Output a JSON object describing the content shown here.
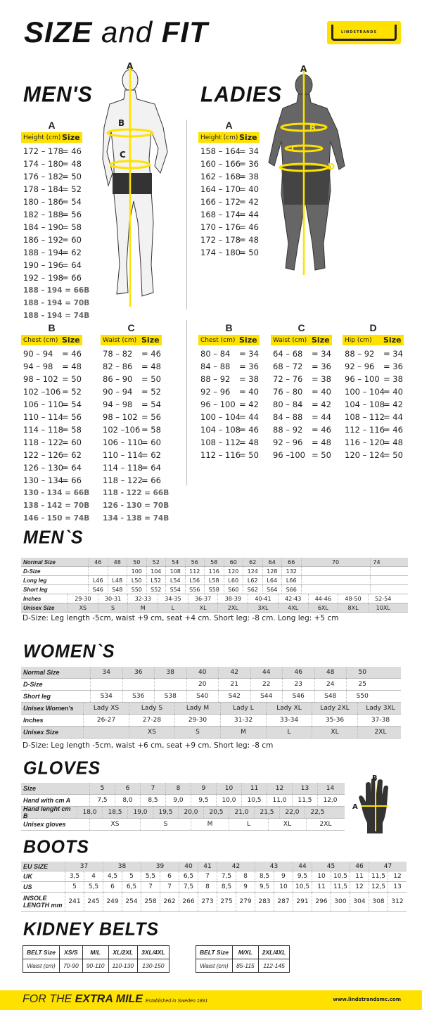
{
  "title": {
    "strong1": "SIZE",
    "mid": " and ",
    "strong2": "FIT"
  },
  "logo": {
    "text": "LINDSTRANDS"
  },
  "colors": {
    "accent": "#ffe100",
    "row_gray": "#dcdcdc"
  },
  "men": {
    "heading": "MEN'S",
    "figure_labels": [
      "A",
      "B",
      "C"
    ],
    "a": {
      "letter": "A",
      "h1": "Height (cm)",
      "h2": "Size",
      "rows": [
        [
          "172 – 178",
          "= 46"
        ],
        [
          "174 – 180",
          "= 48"
        ],
        [
          "176 – 182",
          "= 50"
        ],
        [
          "178 – 184",
          "= 52"
        ],
        [
          "180 – 186",
          "= 54"
        ],
        [
          "182 – 188",
          "= 56"
        ],
        [
          "184 – 190",
          "= 58"
        ],
        [
          "186 – 192",
          "= 60"
        ],
        [
          "188 – 194",
          "= 62"
        ],
        [
          "190 – 196",
          "= 64"
        ],
        [
          "192 – 198",
          "= 66"
        ]
      ],
      "extra": [
        "188 - 194 = 66B",
        "188 - 194 = 70B",
        "188 - 194 = 74B"
      ]
    },
    "b": {
      "letter": "B",
      "h1": "Chest (cm)",
      "h2": "Size",
      "rows": [
        [
          "90 –  94",
          "= 46"
        ],
        [
          "94 –  98",
          "= 48"
        ],
        [
          "98 – 102",
          "= 50"
        ],
        [
          "102 –106",
          "= 52"
        ],
        [
          "106 – 110",
          "= 54"
        ],
        [
          "110 – 114",
          "= 56"
        ],
        [
          "114 – 118",
          "= 58"
        ],
        [
          "118 – 122",
          "= 60"
        ],
        [
          "122 – 126",
          "= 62"
        ],
        [
          "126 – 130",
          "= 64"
        ],
        [
          "130 – 134",
          "= 66"
        ]
      ],
      "extra": [
        "130 - 134 = 66B",
        "138 - 142 = 70B",
        "146 - 150 = 74B"
      ]
    },
    "c": {
      "letter": "C",
      "h1": "Waist (cm)",
      "h2": "Size",
      "rows": [
        [
          "78 –  82",
          "= 46"
        ],
        [
          "82 –  86",
          "= 48"
        ],
        [
          "86 –  90",
          "= 50"
        ],
        [
          "90 –  94",
          "= 52"
        ],
        [
          "94 –  98",
          "= 54"
        ],
        [
          "98 – 102",
          "= 56"
        ],
        [
          "102 –106",
          "= 58"
        ],
        [
          "106 – 110",
          "= 60"
        ],
        [
          "110 – 114",
          "= 62"
        ],
        [
          "114 – 118",
          "= 64"
        ],
        [
          "118 – 122",
          "= 66"
        ]
      ],
      "extra": [
        "118 - 122 = 66B",
        "126 - 130 = 70B",
        "134 - 138 = 74B"
      ]
    }
  },
  "ladies": {
    "heading": "LADIES",
    "figure_labels": [
      "A",
      "B",
      "C",
      "D"
    ],
    "a": {
      "letter": "A",
      "h1": "Height (cm)",
      "h2": "Size",
      "rows": [
        [
          "158 – 164",
          "= 34"
        ],
        [
          "160 – 166",
          "= 36"
        ],
        [
          "162 – 168",
          "= 38"
        ],
        [
          "164 – 170",
          "= 40"
        ],
        [
          "166 – 172",
          "= 42"
        ],
        [
          "168 – 174",
          "= 44"
        ],
        [
          "170 – 176",
          "= 46"
        ],
        [
          "172 – 178",
          "= 48"
        ],
        [
          "174 – 180",
          "= 50"
        ]
      ]
    },
    "b": {
      "letter": "B",
      "h1": "Chest (cm)",
      "h2": "Size",
      "rows": [
        [
          "80 –   84",
          "= 34"
        ],
        [
          "84 –   88",
          "= 36"
        ],
        [
          "88 –   92",
          "= 38"
        ],
        [
          "92 –   96",
          "= 40"
        ],
        [
          "96 –  100",
          "= 42"
        ],
        [
          "100 – 104",
          "= 44"
        ],
        [
          "104 – 108",
          "= 46"
        ],
        [
          "108 –  112",
          "= 48"
        ],
        [
          "112 –   116",
          "= 50"
        ]
      ]
    },
    "c": {
      "letter": "C",
      "h1": "Waist (cm)",
      "h2": "Size",
      "rows": [
        [
          "64 –  68",
          "= 34"
        ],
        [
          "68 –  72",
          "= 36"
        ],
        [
          "72 –  76",
          "= 38"
        ],
        [
          "76 –  80",
          "= 40"
        ],
        [
          "80 –  84",
          "= 42"
        ],
        [
          "84 –  88",
          "= 44"
        ],
        [
          "88 –  92",
          "= 46"
        ],
        [
          "92 –  96",
          "= 48"
        ],
        [
          "96 –100",
          "= 50"
        ]
      ]
    },
    "d": {
      "letter": "D",
      "h1": "Hip (cm)",
      "h2": "Size",
      "rows": [
        [
          "88 –   92",
          "= 34"
        ],
        [
          "92 –   96",
          "= 36"
        ],
        [
          "96 – 100",
          "= 38"
        ],
        [
          "100 – 104",
          "= 40"
        ],
        [
          "104 – 108",
          "= 42"
        ],
        [
          "108 – 112",
          "= 44"
        ],
        [
          "112 –  116",
          "= 46"
        ],
        [
          "116 – 120",
          "= 48"
        ],
        [
          "120 – 124",
          "= 50"
        ]
      ]
    }
  },
  "mens_table": {
    "heading": "MEN`S",
    "note": "D-Size: Leg length -5cm, waist +9 cm, seat +4 cm. Short leg: -8 cm. Long leg: +5 cm",
    "rows": [
      {
        "label": "Normal Size",
        "cells": [
          "46",
          "48",
          "50",
          "52",
          "54",
          "56",
          "58",
          "60",
          "62",
          "64",
          "66",
          "70",
          "74"
        ]
      },
      {
        "label": "D-Size",
        "cells": [
          "",
          "",
          "100",
          "104",
          "108",
          "112",
          "116",
          "120",
          "124",
          "128",
          "132",
          "",
          ""
        ]
      },
      {
        "label": "Long leg",
        "cells": [
          "L46",
          "L48",
          "L50",
          "L52",
          "L54",
          "L56",
          "L58",
          "L60",
          "L62",
          "L64",
          "L66",
          "",
          ""
        ]
      },
      {
        "label": "Short leg",
        "cells": [
          "S46",
          "S48",
          "S50",
          "S52",
          "S54",
          "S56",
          "S58",
          "S60",
          "S62",
          "S64",
          "S66",
          "",
          ""
        ]
      },
      {
        "label": "Inches",
        "cells": [
          "29-30",
          "30-31",
          "32-33",
          "34-35",
          "36-37",
          "38-39",
          "40-41",
          "42-43",
          "44-46",
          "48-50",
          "52-54"
        ]
      },
      {
        "label": "Unisex Size",
        "cells": [
          "XS",
          "S",
          "M",
          "L",
          "XL",
          "2XL",
          "3XL",
          "4XL",
          "6XL",
          "8XL",
          "10XL"
        ]
      }
    ]
  },
  "womens_table": {
    "heading": "WOMEN`S",
    "note": "D-Size: Leg length -5cm, waist +6 cm, seat +9 cm. Short leg: -8 cm",
    "rows": [
      {
        "label": "Normal Size",
        "cells": [
          "34",
          "36",
          "38",
          "40",
          "42",
          "44",
          "46",
          "48",
          "50"
        ]
      },
      {
        "label": "D-Size",
        "cells": [
          "",
          "",
          "",
          "20",
          "21",
          "22",
          "23",
          "24",
          "25"
        ]
      },
      {
        "label": "Short leg",
        "cells": [
          "S34",
          "S36",
          "S38",
          "S40",
          "S42",
          "S44",
          "S46",
          "S48",
          "S50"
        ]
      },
      {
        "label": "Unisex Women's",
        "cells": [
          "Lady XS",
          "Lady S",
          "Lady M",
          "Lady L",
          "Lady XL",
          "Lady 2XL",
          "Lady 3XL"
        ]
      },
      {
        "label": "Inches",
        "cells": [
          "26-27",
          "27-28",
          "29-30",
          "31-32",
          "33-34",
          "35-36",
          "37-38"
        ]
      },
      {
        "label": "Unisex Size",
        "cells": [
          "",
          "XS",
          "S",
          "M",
          "L",
          "XL",
          "2XL"
        ]
      }
    ]
  },
  "gloves": {
    "heading": "GLOVES",
    "figure_labels": [
      "A",
      "B"
    ],
    "rows": [
      {
        "label": "Size",
        "cells": [
          "5",
          "6",
          "7",
          "8",
          "9",
          "10",
          "11",
          "12",
          "13",
          "14"
        ]
      },
      {
        "label": "Hand with cm A",
        "cells": [
          "7,5",
          "8,0",
          "8,5",
          "9,0",
          "9,5",
          "10,0",
          "10,5",
          "11,0",
          "11,5",
          "12,0"
        ]
      },
      {
        "label": "Hand lenght cm B",
        "cells": [
          "18,0",
          "18,5",
          "19,0",
          "19,5",
          "20,0",
          "20,5",
          "21,0",
          "21,5",
          "22,0",
          "22,5"
        ]
      },
      {
        "label": "Unisex gloves",
        "cells": [
          "XS",
          "S",
          "M",
          "L",
          "XL",
          "2XL"
        ]
      }
    ]
  },
  "boots": {
    "heading": "BOOTS",
    "rows": [
      {
        "label": "EU SIZE",
        "cells": [
          "37",
          "38",
          "39",
          "40",
          "41",
          "42",
          "43",
          "44",
          "45",
          "46",
          "47"
        ]
      },
      {
        "label": "UK",
        "cells": [
          "3,5",
          "4",
          "4,5",
          "5",
          "5,5",
          "6",
          "6,5",
          "7",
          "7,5",
          "8",
          "8,5",
          "9",
          "9,5",
          "10",
          "10,5",
          "11",
          "11,5",
          "12"
        ]
      },
      {
        "label": "US",
        "cells": [
          "5",
          "5,5",
          "6",
          "6,5",
          "7",
          "7",
          "7,5",
          "8",
          "8,5",
          "9",
          "9,5",
          "10",
          "10,5",
          "11",
          "11,5",
          "12",
          "12,5",
          "13"
        ]
      },
      {
        "label": "INSOLE LENGTH mm",
        "cells": [
          "241",
          "245",
          "249",
          "254",
          "258",
          "262",
          "266",
          "273",
          "275",
          "279",
          "283",
          "287",
          "291",
          "296",
          "300",
          "304",
          "308",
          "312"
        ]
      }
    ]
  },
  "kidney": {
    "heading": "KIDNEY BELTS",
    "t1": [
      [
        "BELT Size",
        "XS/S",
        "M/L",
        "XL/2XL",
        "3XL/4XL"
      ],
      [
        "Waist (cm)",
        "70-90",
        "90-110",
        "110-130",
        "130-150"
      ]
    ],
    "t2": [
      [
        "BELT Size",
        "M/XL",
        "2XL/4XL"
      ],
      [
        "Waist (cm)",
        "85-115",
        "112-145"
      ]
    ]
  },
  "footer": {
    "pre": "FOR THE ",
    "strong": "EXTRA MILE",
    "est": "Established in Sweden 1891",
    "url": "www.lindstrandsmc.com"
  }
}
